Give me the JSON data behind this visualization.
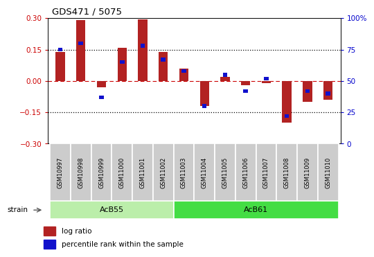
{
  "title": "GDS471 / 5075",
  "samples": [
    "GSM10997",
    "GSM10998",
    "GSM10999",
    "GSM11000",
    "GSM11001",
    "GSM11002",
    "GSM11003",
    "GSM11004",
    "GSM11005",
    "GSM11006",
    "GSM11007",
    "GSM11008",
    "GSM11009",
    "GSM11010"
  ],
  "log_ratio": [
    0.14,
    0.29,
    -0.03,
    0.16,
    0.295,
    0.14,
    0.06,
    -0.12,
    0.02,
    -0.02,
    -0.01,
    -0.2,
    -0.1,
    -0.09
  ],
  "percentile_rank": [
    75,
    80,
    37,
    65,
    78,
    67,
    58,
    30,
    55,
    42,
    52,
    22,
    42,
    40
  ],
  "bar_color": "#b22222",
  "marker_color": "#1111cc",
  "ylim_left": [
    -0.3,
    0.3
  ],
  "ylim_right": [
    0,
    100
  ],
  "yticks_left": [
    -0.3,
    -0.15,
    0.0,
    0.15,
    0.3
  ],
  "yticks_right": [
    0,
    25,
    50,
    75,
    100
  ],
  "groups": [
    {
      "label": "AcB55",
      "start": 0,
      "end": 5,
      "color": "#bbeeaa"
    },
    {
      "label": "AcB61",
      "start": 6,
      "end": 13,
      "color": "#44dd44"
    }
  ],
  "strain_label": "strain",
  "bar_width": 0.45,
  "bg_color": "#ffffff",
  "plot_bg": "#ffffff",
  "tick_label_color_left": "#cc0000",
  "tick_label_color_right": "#0000cc",
  "label_bg": "#cccccc"
}
